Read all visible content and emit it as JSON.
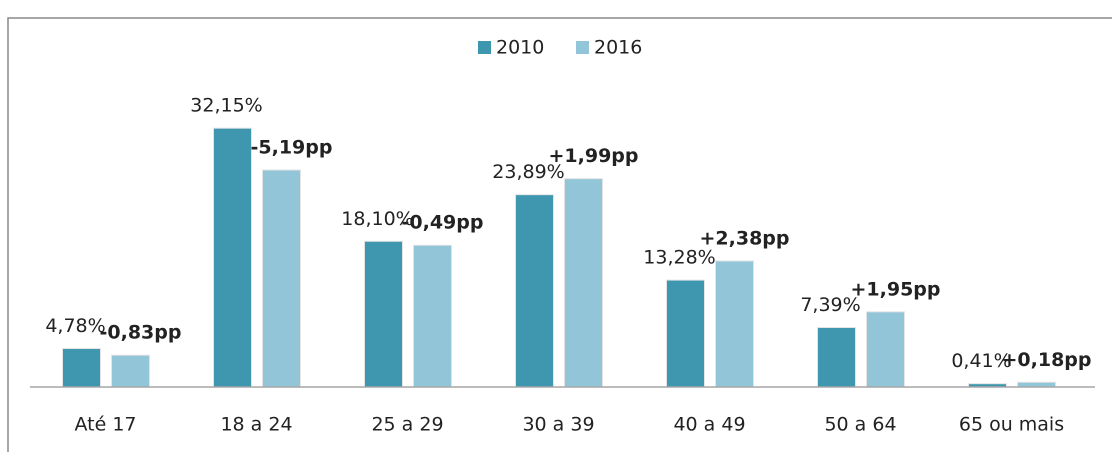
{
  "chart_data": {
    "type": "bar",
    "categories": [
      "Até 17",
      "18 a 24",
      "25 a 29",
      "30 a 39",
      "40 a 49",
      "50 a 64",
      "65 ou mais"
    ],
    "series": [
      {
        "name": "2010",
        "color": "#3e97ae",
        "values": [
          4.78,
          32.15,
          18.1,
          23.89,
          13.28,
          7.39,
          0.41
        ],
        "value_labels": [
          "4,78%",
          "32,15%",
          "18,10%",
          "23,89%",
          "13,28%",
          "7,39%",
          "0,41%"
        ]
      },
      {
        "name": "2016",
        "color": "#93c5d8",
        "values": [
          3.95,
          26.96,
          17.61,
          25.88,
          15.66,
          9.34,
          0.59
        ]
      }
    ],
    "annotations": [
      {
        "text": "-0,83pp",
        "color": "#ff0000"
      },
      {
        "text": "-5,19pp",
        "color": "#ff0000"
      },
      {
        "text": "-0,49pp",
        "color": "#ff0000"
      },
      {
        "text": "+1,99pp",
        "color": "#2e6d82"
      },
      {
        "text": "+2,38pp",
        "color": "#2e6d82"
      },
      {
        "text": "+1,95pp",
        "color": "#2e6d82"
      },
      {
        "text": "+0,18pp",
        "color": "#2e6d82"
      }
    ],
    "ylim": [
      0,
      40
    ],
    "legend": "top"
  }
}
